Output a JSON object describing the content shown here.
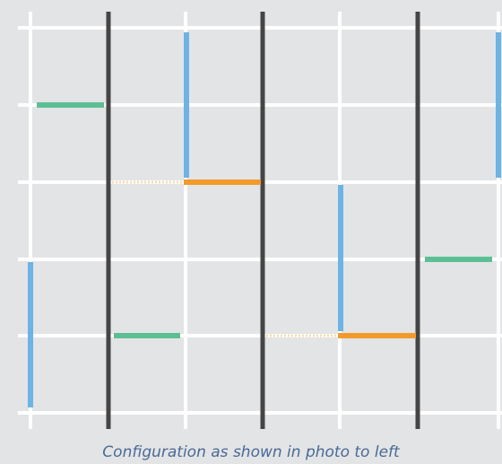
{
  "caption": "Configuration as shown in photo to left",
  "colors": {
    "background": "#e3e4e6",
    "grid_line": "#ffffff",
    "divider": "#454545",
    "blue_segment": "#6db3e4",
    "green_segment": "#5cbf94",
    "orange_segment": "#f29a2b",
    "dotted_link": "#f5ddb0"
  },
  "segments": [
    {
      "kind": "blue",
      "orientation": "vertical"
    },
    {
      "kind": "green",
      "orientation": "horizontal"
    },
    {
      "kind": "dotted",
      "orientation": "horizontal"
    },
    {
      "kind": "green",
      "orientation": "horizontal"
    },
    {
      "kind": "blue",
      "orientation": "vertical"
    },
    {
      "kind": "orange",
      "orientation": "horizontal"
    },
    {
      "kind": "dotted",
      "orientation": "horizontal"
    },
    {
      "kind": "blue",
      "orientation": "vertical"
    },
    {
      "kind": "orange",
      "orientation": "horizontal"
    },
    {
      "kind": "green",
      "orientation": "horizontal"
    },
    {
      "kind": "blue",
      "orientation": "vertical"
    }
  ]
}
